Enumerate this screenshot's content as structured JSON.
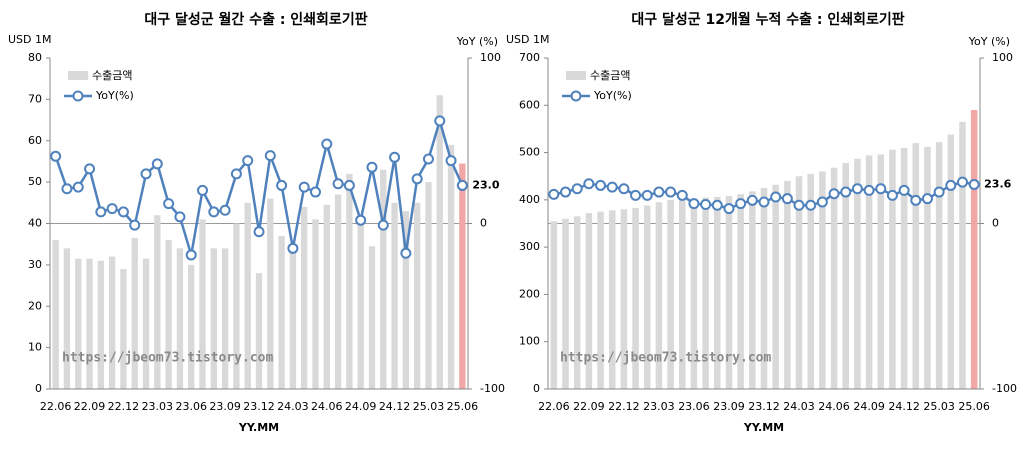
{
  "chart_data": [
    {
      "type": "bar_line",
      "title": "대구 달성군 월간 수출 : 인쇄회로기판",
      "y_label": "USD 1M",
      "y2_label": "YoY (%)",
      "x_label": "YY.MM",
      "watermark": "https://jbeom73.tistory.com",
      "categories": [
        "22.06",
        null,
        null,
        "22.09",
        null,
        null,
        "22.12",
        null,
        null,
        "23.03",
        null,
        null,
        "23.06",
        null,
        null,
        "23.09",
        null,
        null,
        "23.12",
        null,
        null,
        "24.03",
        null,
        null,
        "24.06",
        null,
        null,
        "24.09",
        null,
        null,
        "24.12",
        null,
        null,
        "25.03",
        null,
        null,
        "25.06"
      ],
      "series": [
        {
          "name": "수출금액",
          "color": "#d9d9d9",
          "highlight_color": "#f2a7a7",
          "values": [
            36,
            34,
            31.5,
            31.5,
            31,
            32,
            29,
            36.5,
            31.5,
            42,
            36,
            34,
            30,
            41,
            34,
            34,
            40,
            45,
            28,
            46,
            37,
            35,
            44,
            41,
            44.5,
            47,
            52,
            42,
            34.5,
            53,
            45,
            43,
            45,
            50,
            71,
            59,
            54.5
          ]
        },
        {
          "name": "YoY(%)",
          "color": "#4f81bd",
          "axis": "y2",
          "label_color": "#e00000",
          "values": [
            40.6,
            21,
            22,
            33,
            7,
            9,
            7,
            -1,
            30,
            36,
            12,
            4,
            -19,
            20,
            7,
            8,
            30,
            38,
            -5,
            41,
            23,
            -15,
            22,
            19,
            48,
            24,
            23,
            2,
            34,
            -1,
            40,
            -18,
            27,
            39,
            62,
            38,
            23.0
          ],
          "value_labels": [
            null,
            null,
            null,
            null,
            null,
            null,
            null,
            null,
            null,
            null,
            null,
            null,
            null,
            null,
            null,
            null,
            null,
            null,
            null,
            null,
            null,
            null,
            null,
            null,
            null,
            null,
            null,
            null,
            null,
            null,
            null,
            null,
            null,
            null,
            null,
            null,
            "23.0"
          ]
        }
      ],
      "ylim": [
        0,
        80
      ],
      "yticks": [
        0,
        10,
        20,
        30,
        40,
        50,
        60,
        70,
        80
      ],
      "y2lim": [
        -100,
        100
      ],
      "y2ticks": [
        100,
        0,
        -100
      ]
    },
    {
      "type": "bar_line",
      "title": "대구 달성군 12개월 누적 수출 : 인쇄회로기판",
      "y_label": "USD 1M",
      "y2_label": "YoY (%)",
      "x_label": "YY.MM",
      "watermark": "https://jbeom73.tistory.com",
      "categories": [
        "22.06",
        null,
        null,
        "22.09",
        null,
        null,
        "22.12",
        null,
        null,
        "23.03",
        null,
        null,
        "23.06",
        null,
        null,
        "23.09",
        null,
        null,
        "23.12",
        null,
        null,
        "24.03",
        null,
        null,
        "24.06",
        null,
        null,
        "24.09",
        null,
        null,
        "24.12",
        null,
        null,
        "25.03",
        null,
        null,
        "25.06"
      ],
      "series": [
        {
          "name": "수출금액",
          "color": "#d9d9d9",
          "highlight_color": "#f2a7a7",
          "values": [
            355,
            360,
            365,
            372,
            375,
            378,
            380,
            383,
            388,
            395,
            400,
            402,
            403,
            405,
            406,
            408,
            412,
            418,
            425,
            432,
            440,
            450,
            455,
            460,
            468,
            478,
            487,
            494,
            496,
            506,
            510,
            520,
            512,
            522,
            538,
            565,
            590
          ]
        },
        {
          "name": "YoY(%)",
          "color": "#4f81bd",
          "axis": "y2",
          "label_color": "#e00000",
          "values": [
            17.6,
            19,
            21,
            24,
            23,
            22,
            21,
            17,
            17,
            19,
            19,
            17,
            12,
            11.5,
            11,
            9,
            12,
            14,
            13,
            16,
            15,
            11,
            11,
            13,
            18,
            19,
            21,
            20,
            21,
            17,
            20,
            14,
            15,
            19,
            23,
            25,
            23.6
          ],
          "value_labels": [
            null,
            null,
            null,
            null,
            null,
            null,
            null,
            null,
            null,
            null,
            null,
            null,
            null,
            null,
            null,
            null,
            null,
            null,
            null,
            null,
            null,
            null,
            null,
            null,
            null,
            null,
            null,
            null,
            null,
            null,
            null,
            null,
            null,
            null,
            null,
            null,
            "23.6"
          ]
        }
      ],
      "ylim": [
        0,
        700
      ],
      "yticks": [
        0,
        100,
        200,
        300,
        400,
        500,
        600,
        700
      ],
      "y2lim": [
        -100,
        100
      ],
      "y2ticks": [
        100,
        0,
        -100
      ]
    }
  ]
}
